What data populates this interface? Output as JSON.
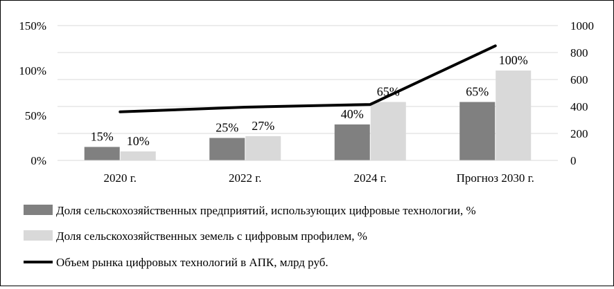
{
  "chart_data": {
    "type": "bar",
    "categories": [
      "2020 г.",
      "2022 г.",
      "2024 г.",
      "Прогноз 2030 г."
    ],
    "series": [
      {
        "name": "Доля сельскохозяйственных предприятий, использующих цифровые технологии, %",
        "type": "bar",
        "axis": "left",
        "values": [
          15,
          25,
          40,
          65
        ],
        "labels": [
          "15%",
          "25%",
          "40%",
          "65%"
        ],
        "color": "#808080"
      },
      {
        "name": "Доля сельскохозяйственных земель с цифровым профилем, %",
        "type": "bar",
        "axis": "left",
        "values": [
          10,
          27,
          65,
          100
        ],
        "labels": [
          "10%",
          "27%",
          "65%",
          "100%"
        ],
        "color": "#d9d9d9"
      },
      {
        "name": "Объем рынка цифровых технологий в АПК, млрд руб.",
        "type": "line",
        "axis": "right",
        "values": [
          360,
          395,
          415,
          850
        ],
        "color": "#000000"
      }
    ],
    "y_left": {
      "ticks": [
        "0%",
        "50%",
        "100%",
        "150%"
      ],
      "lim": [
        0,
        150
      ]
    },
    "y_right": {
      "ticks": [
        "0",
        "200",
        "400",
        "600",
        "800",
        "1000"
      ],
      "lim": [
        0,
        1000
      ]
    },
    "grid": true,
    "legend_position": "bottom"
  }
}
